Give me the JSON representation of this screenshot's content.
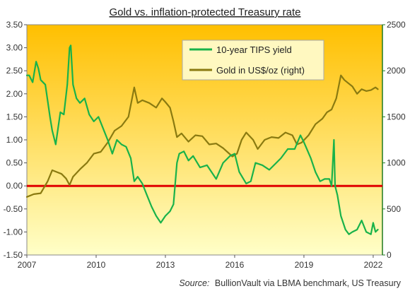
{
  "chart_data": {
    "type": "line",
    "title": "Gold vs. inflation-protected Treasury rate",
    "source_label": "Source:",
    "source_text": "BullionVault via LBMA benchmark, US Treasury",
    "x_ticks": [
      "2007",
      "2010",
      "2013",
      "2016",
      "2019",
      "2022"
    ],
    "xlim": [
      2007.0,
      2022.4
    ],
    "y_left": {
      "ylim": [
        -1.5,
        3.5
      ],
      "ticks": [
        "3.50",
        "3.00",
        "2.50",
        "2.00",
        "1.50",
        "1.00",
        "0.50",
        "0.00",
        "-0.50",
        "-1.00",
        "-1.50"
      ]
    },
    "y_right": {
      "ylim": [
        0,
        2500
      ],
      "ticks": [
        "2500",
        "2000",
        "1500",
        "1000",
        "500",
        "0"
      ]
    },
    "zero_line": 0.0,
    "colors": {
      "tips": "#19b24a",
      "gold": "#8a7a10",
      "zero_line": "#e00000",
      "background_top": "#ffbf00",
      "background_bottom": "#ffffc8",
      "right_axis": "#1f7a1f"
    },
    "series": [
      {
        "name": "10-year TIPS yield",
        "axis": "left",
        "x": [
          2007.0,
          2007.1,
          2007.25,
          2007.4,
          2007.5,
          2007.6,
          2007.8,
          2008.0,
          2008.1,
          2008.25,
          2008.45,
          2008.6,
          2008.75,
          2008.85,
          2008.9,
          2009.0,
          2009.15,
          2009.3,
          2009.5,
          2009.7,
          2009.9,
          2010.1,
          2010.3,
          2010.5,
          2010.7,
          2010.9,
          2011.1,
          2011.3,
          2011.5,
          2011.65,
          2011.8,
          2012.0,
          2012.2,
          2012.4,
          2012.6,
          2012.8,
          2013.0,
          2013.2,
          2013.35,
          2013.5,
          2013.6,
          2013.8,
          2014.0,
          2014.2,
          2014.5,
          2014.8,
          2015.0,
          2015.2,
          2015.5,
          2015.8,
          2016.0,
          2016.2,
          2016.5,
          2016.7,
          2016.9,
          2017.2,
          2017.5,
          2017.8,
          2018.0,
          2018.3,
          2018.6,
          2018.85,
          2019.0,
          2019.3,
          2019.5,
          2019.7,
          2019.9,
          2020.1,
          2020.2,
          2020.3,
          2020.35,
          2020.45,
          2020.6,
          2020.8,
          2020.95,
          2021.1,
          2021.3,
          2021.5,
          2021.7,
          2021.9,
          2022.0,
          2022.1,
          2022.2
        ],
        "values": [
          2.4,
          2.4,
          2.25,
          2.7,
          2.55,
          2.3,
          2.2,
          1.5,
          1.2,
          0.9,
          1.6,
          1.55,
          2.2,
          3.0,
          3.05,
          2.2,
          1.9,
          1.8,
          1.9,
          1.55,
          1.4,
          1.5,
          1.25,
          1.0,
          0.7,
          1.0,
          0.9,
          0.85,
          0.6,
          0.1,
          0.2,
          0.05,
          -0.2,
          -0.45,
          -0.65,
          -0.8,
          -0.65,
          -0.55,
          -0.4,
          0.5,
          0.7,
          0.75,
          0.55,
          0.65,
          0.4,
          0.45,
          0.3,
          0.15,
          0.5,
          0.65,
          0.7,
          0.3,
          0.05,
          0.1,
          0.5,
          0.45,
          0.35,
          0.5,
          0.6,
          0.8,
          0.8,
          1.1,
          0.95,
          0.6,
          0.3,
          0.1,
          0.15,
          0.15,
          0.0,
          1.0,
          0.0,
          -0.2,
          -0.65,
          -0.95,
          -1.05,
          -1.0,
          -0.95,
          -0.75,
          -1.0,
          -1.05,
          -0.8,
          -1.0,
          -0.95
        ]
      },
      {
        "name": "Gold in US$/oz (right)",
        "axis": "right",
        "x": [
          2007.0,
          2007.3,
          2007.6,
          2007.9,
          2008.1,
          2008.3,
          2008.5,
          2008.7,
          2008.85,
          2009.0,
          2009.3,
          2009.6,
          2009.9,
          2010.2,
          2010.5,
          2010.8,
          2011.1,
          2011.4,
          2011.65,
          2011.8,
          2012.0,
          2012.3,
          2012.6,
          2012.85,
          2013.0,
          2013.2,
          2013.35,
          2013.5,
          2013.7,
          2014.0,
          2014.3,
          2014.6,
          2014.9,
          2015.2,
          2015.5,
          2015.9,
          2016.1,
          2016.3,
          2016.5,
          2016.8,
          2017.0,
          2017.3,
          2017.6,
          2017.9,
          2018.2,
          2018.5,
          2018.7,
          2018.9,
          2019.2,
          2019.5,
          2019.8,
          2020.0,
          2020.2,
          2020.4,
          2020.6,
          2020.75,
          2020.9,
          2021.1,
          2021.3,
          2021.5,
          2021.7,
          2021.9,
          2022.1,
          2022.2
        ],
        "values": [
          630,
          660,
          670,
          800,
          920,
          900,
          880,
          830,
          760,
          850,
          930,
          1000,
          1100,
          1120,
          1220,
          1350,
          1400,
          1500,
          1820,
          1650,
          1680,
          1650,
          1600,
          1700,
          1660,
          1600,
          1450,
          1280,
          1320,
          1230,
          1300,
          1290,
          1200,
          1210,
          1160,
          1070,
          1100,
          1250,
          1330,
          1250,
          1150,
          1250,
          1280,
          1270,
          1330,
          1300,
          1200,
          1220,
          1300,
          1420,
          1480,
          1550,
          1580,
          1700,
          1950,
          1900,
          1870,
          1830,
          1750,
          1800,
          1780,
          1790,
          1820,
          1800
        ]
      }
    ]
  }
}
